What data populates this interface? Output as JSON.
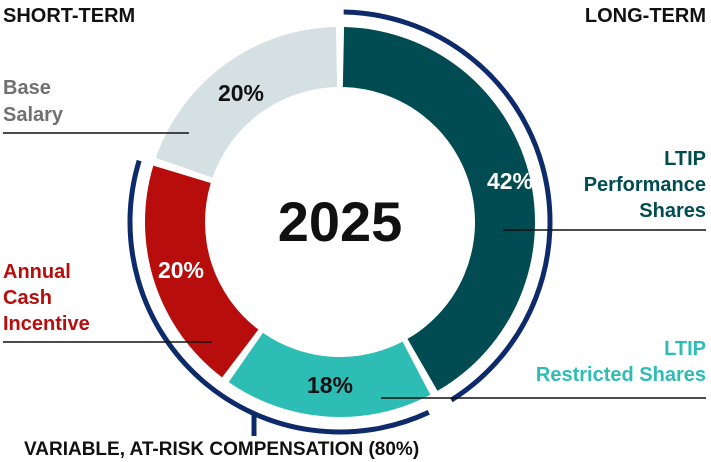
{
  "chart_data": {
    "type": "pie",
    "style": "donut",
    "center_label": "2025",
    "slices": [
      {
        "label_lines": [
          "LTIP",
          "Performance",
          "Shares"
        ],
        "value": 42,
        "value_label": "42%",
        "color": "#004c52",
        "value_color": "#ffffff"
      },
      {
        "label_lines": [
          "LTIP",
          "Restricted Shares"
        ],
        "value": 18,
        "value_label": "18%",
        "color": "#2ebdb5",
        "value_color": "#111111"
      },
      {
        "label_lines": [
          "Annual",
          "Cash",
          "Incentive"
        ],
        "value": 20,
        "value_label": "20%",
        "color": "#b70d0c",
        "value_color": "#ffffff"
      },
      {
        "label_lines": [
          "Base",
          "Salary"
        ],
        "value": 20,
        "value_label": "20%",
        "color": "#d5e0e2",
        "value_color": "#111111"
      }
    ],
    "short_term_label": "SHORT-TERM",
    "long_term_label": "LONG-TERM",
    "variable_label": "VARIABLE, AT-RISK COMPENSATION (80%)",
    "label_colors": [
      "#004c52",
      "#2ebdb5",
      "#b70d0c",
      "#707070"
    ],
    "bracket_color": "#0d2a6b"
  }
}
